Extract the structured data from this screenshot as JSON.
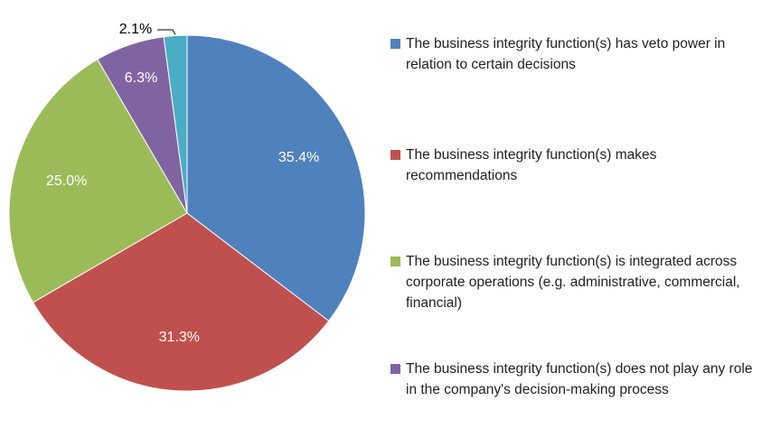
{
  "chart_data": {
    "type": "pie",
    "categories": [
      "The business integrity function(s) has veto power in relation to certain decisions",
      "The business integrity function(s) makes recommendations",
      "The business integrity function(s) is integrated across corporate operations (e.g. administrative, commercial, financial)",
      "The business integrity function(s) does not play any role in the company's decision-making process",
      null
    ],
    "values": [
      35.4,
      31.3,
      25.0,
      6.3,
      2.1
    ],
    "value_labels": [
      "35.4%",
      "31.3%",
      "25.0%",
      "6.3%",
      "2.1%"
    ],
    "colors": [
      "#4f81bd",
      "#c0504d",
      "#9bbb59",
      "#8064a2",
      "#4bacc6"
    ],
    "legend": "right"
  }
}
